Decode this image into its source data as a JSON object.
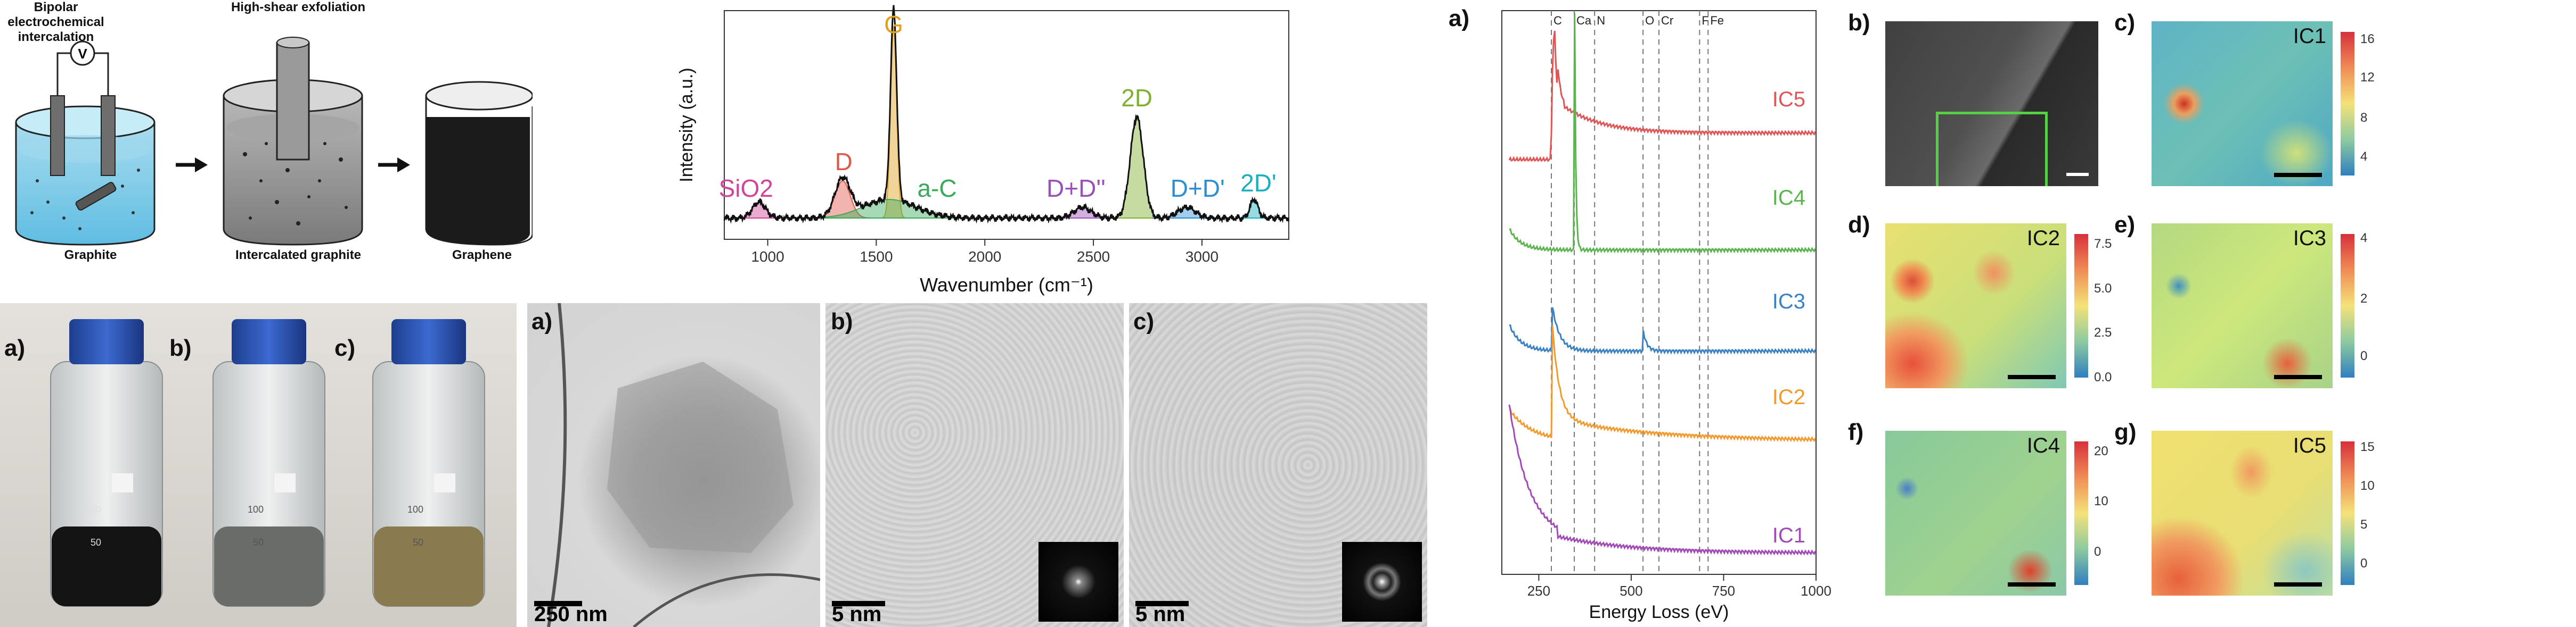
{
  "schematic": {
    "step1_title": "Bipolar electrochemical\nintercalation",
    "step2_title": "High-shear exfoliation",
    "labels": [
      "Graphite",
      "Intercalated graphite",
      "Graphene"
    ],
    "voltmeter": "V"
  },
  "bottles": {
    "letters": [
      "a)",
      "b)",
      "c)"
    ],
    "marks": [
      "100",
      "50"
    ]
  },
  "tem": {
    "letters": [
      "a)",
      "b)",
      "c)"
    ],
    "scalebars": [
      "250 nm",
      "5 nm",
      "5 nm"
    ]
  },
  "raman": {
    "chart_data": {
      "type": "line",
      "xlabel": "Wavenumber (cm⁻¹)",
      "ylabel": "Intensity (a.u.)",
      "xlim": [
        800,
        3400
      ],
      "xticks": [
        1000,
        1500,
        2000,
        2500,
        3000
      ],
      "peaks": [
        {
          "name": "SiO2",
          "x": 960,
          "color": "#d0449a"
        },
        {
          "name": "D",
          "x": 1345,
          "color": "#e0584c"
        },
        {
          "name": "G",
          "x": 1580,
          "color": "#e0a020"
        },
        {
          "name": "a-C",
          "x": 1560,
          "color": "#3aaa5a"
        },
        {
          "name": "D+D''",
          "x": 2450,
          "color": "#9a50b8"
        },
        {
          "name": "2D",
          "x": 2700,
          "color": "#80b030"
        },
        {
          "name": "D+D'",
          "x": 2930,
          "color": "#2e8fd0"
        },
        {
          "name": "2D'",
          "x": 3240,
          "color": "#18b0c0"
        }
      ]
    }
  },
  "eels": {
    "letter": "a)",
    "chart_data": {
      "type": "line",
      "xlabel": "Energy Loss (eV)",
      "xlim": [
        150,
        1000
      ],
      "xticks": [
        250,
        500,
        750,
        1000
      ],
      "edges": [
        {
          "label": "C",
          "x": 284
        },
        {
          "label": "Ca",
          "x": 346
        },
        {
          "label": "N",
          "x": 401
        },
        {
          "label": "O",
          "x": 532
        },
        {
          "label": "Cr",
          "x": 575
        },
        {
          "label": "F",
          "x": 685
        },
        {
          "label": "Fe",
          "x": 708
        }
      ],
      "series": [
        {
          "name": "IC5",
          "color": "#e05555"
        },
        {
          "name": "IC4",
          "color": "#5ab54e"
        },
        {
          "name": "IC3",
          "color": "#3b82c4"
        },
        {
          "name": "IC2",
          "color": "#f39a2e"
        },
        {
          "name": "IC1",
          "color": "#a24ab8"
        }
      ]
    }
  },
  "maps": {
    "letters": [
      "b)",
      "c)",
      "d)",
      "e)",
      "f)",
      "g)"
    ],
    "titles": [
      "IC1",
      "IC2",
      "IC3",
      "IC4",
      "IC5"
    ],
    "colorbars": [
      {
        "ticks": [
          "16",
          "12",
          "8",
          "4"
        ],
        "fracs": [
          0.95,
          0.68,
          0.4,
          0.13
        ]
      },
      {
        "ticks": [
          "7.5",
          "5.0",
          "2.5",
          "0.0"
        ],
        "fracs": [
          0.93,
          0.62,
          0.31,
          0.0
        ]
      },
      {
        "ticks": [
          "4",
          "2",
          "0"
        ],
        "fracs": [
          0.97,
          0.55,
          0.15
        ]
      },
      {
        "ticks": [
          "20",
          "10",
          "0"
        ],
        "fracs": [
          0.93,
          0.58,
          0.23
        ]
      },
      {
        "ticks": [
          "15",
          "10",
          "5",
          "0"
        ],
        "fracs": [
          0.96,
          0.69,
          0.42,
          0.15
        ]
      }
    ]
  }
}
